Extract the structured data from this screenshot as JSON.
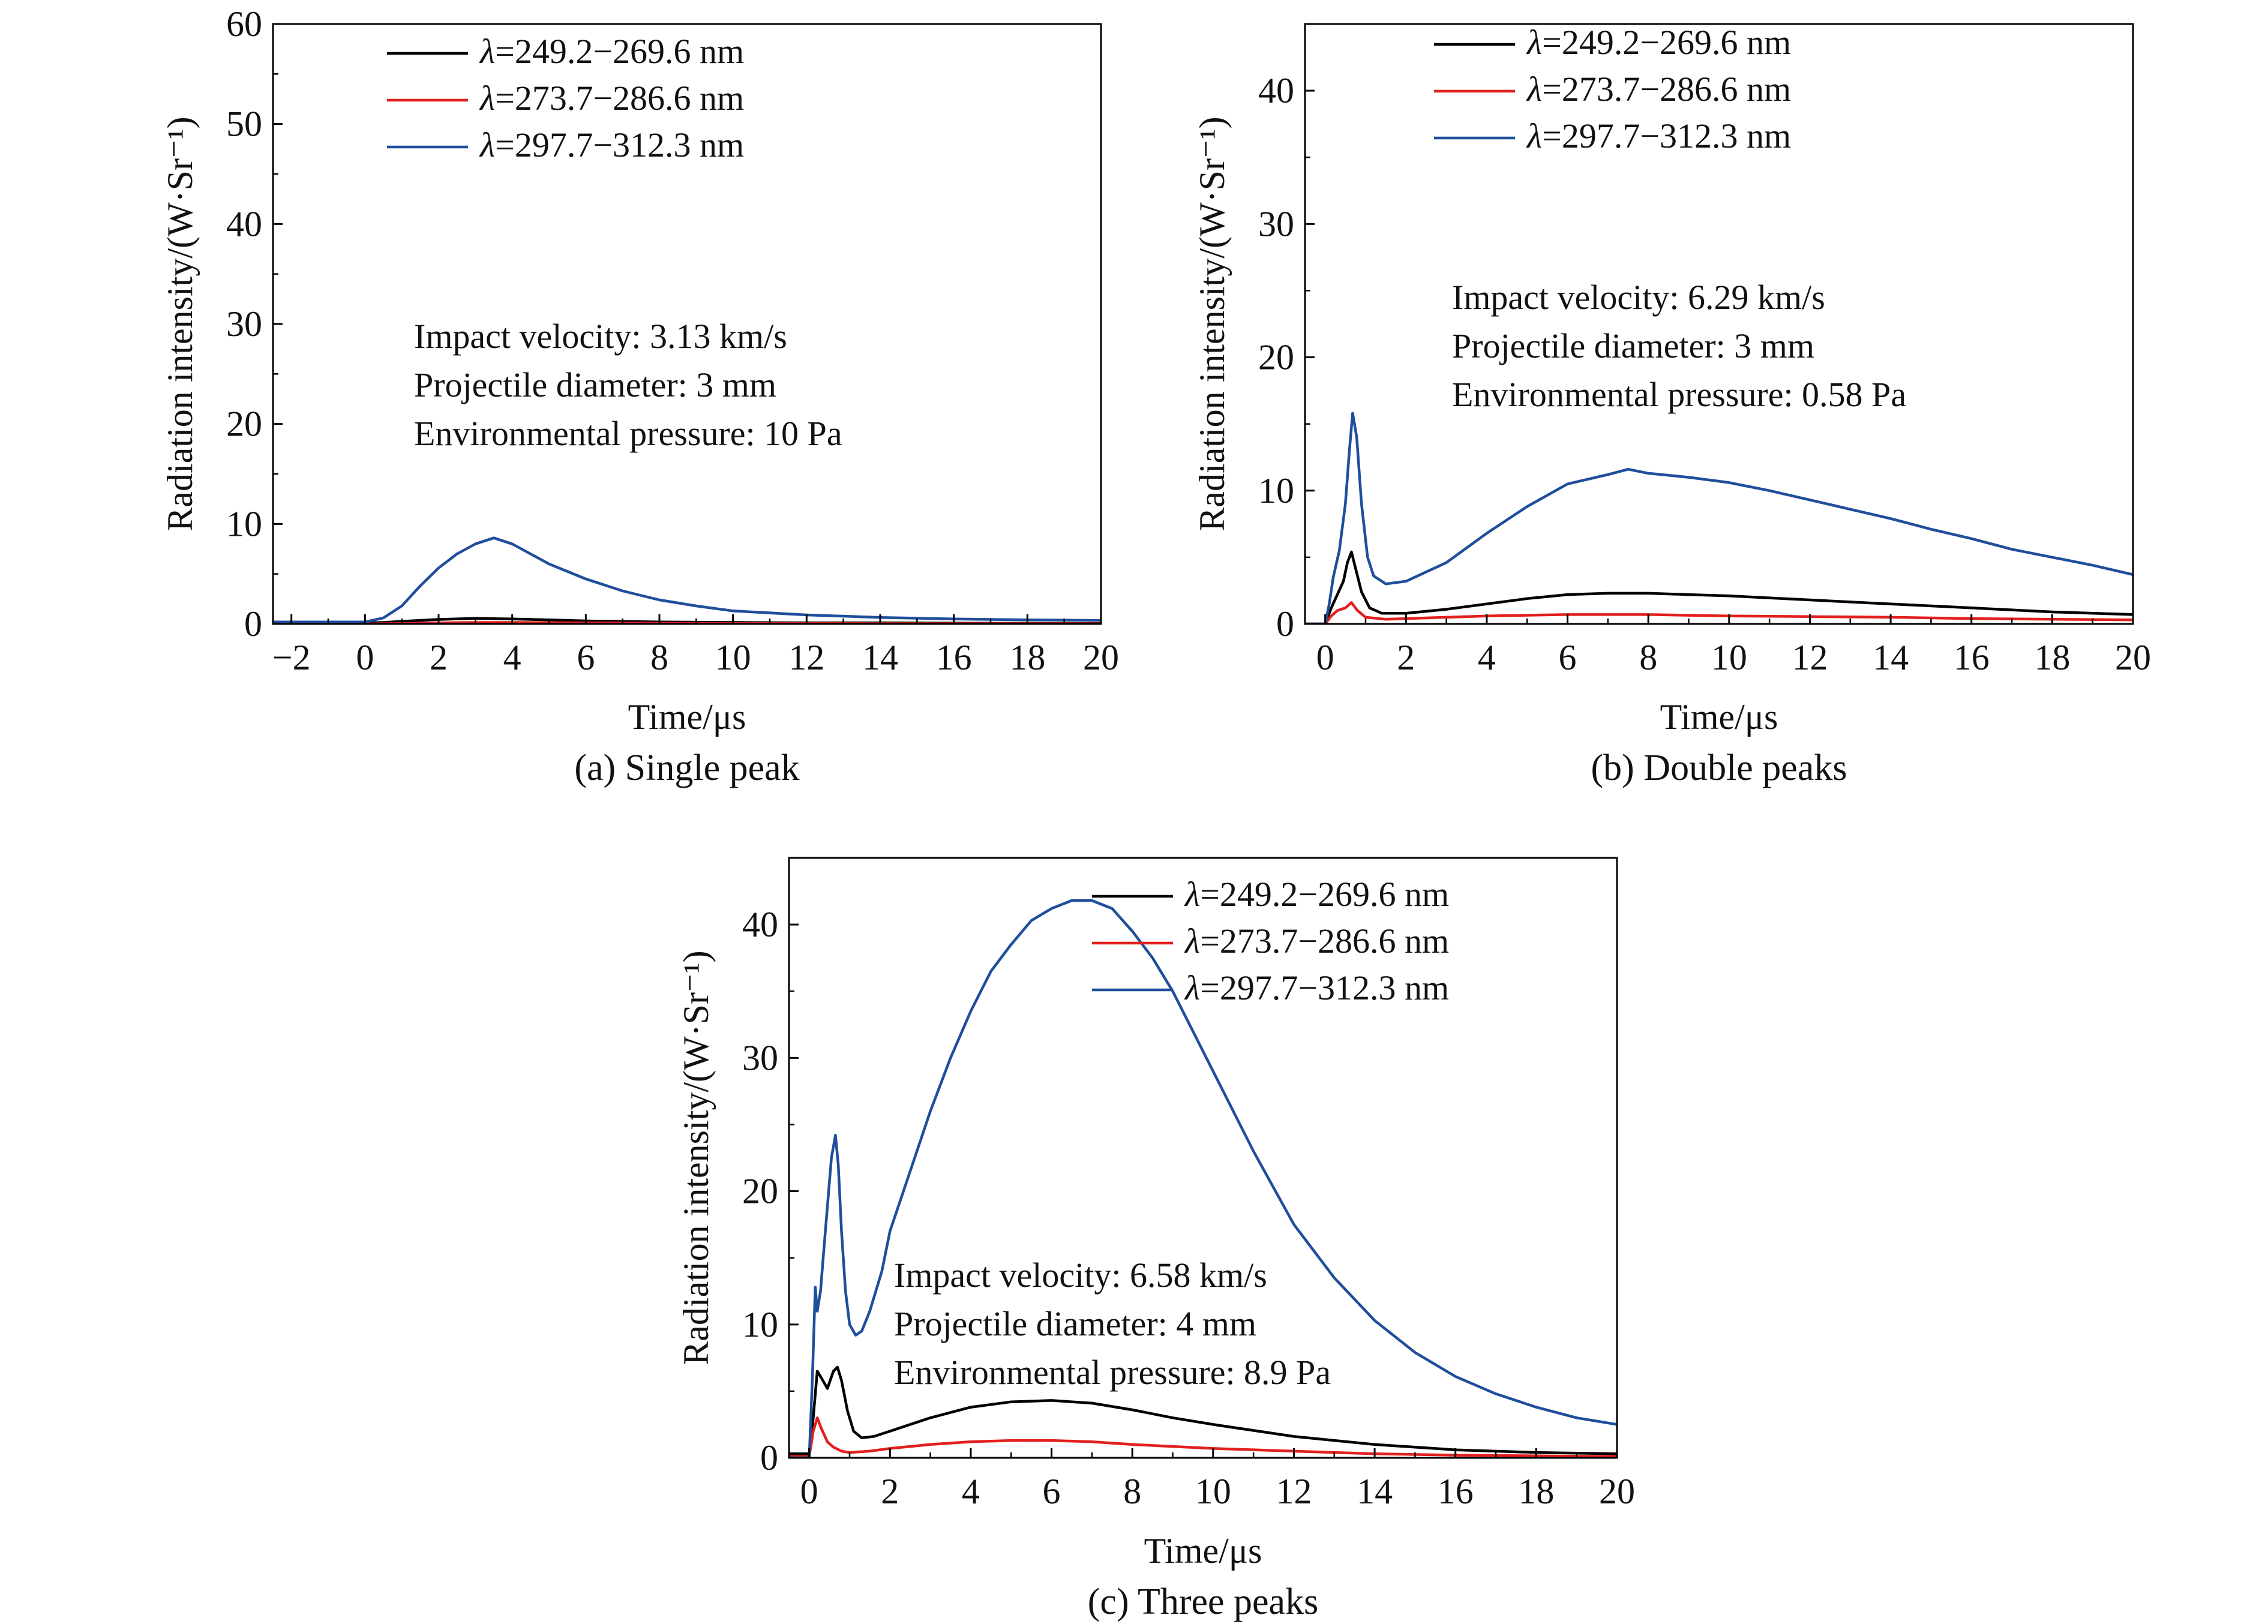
{
  "series_colors": {
    "black": "#000000",
    "red": "#e2201e",
    "blue": "#1f4e9c"
  },
  "chart_data": [
    {
      "type": "line",
      "panel": "a",
      "caption": "(a) Single peak",
      "xlabel": "Time/μs",
      "ylabel": "Radiation intensity/(W·Sr⁻¹)",
      "xlim": [
        -2.5,
        20
      ],
      "ylim": [
        0,
        60
      ],
      "xticks": [
        -2,
        0,
        2,
        4,
        6,
        8,
        10,
        12,
        14,
        16,
        18,
        20
      ],
      "xtick_labels": [
        "−2",
        "0",
        "2",
        "4",
        "6",
        "8",
        "10",
        "12",
        "14",
        "16",
        "18",
        "20"
      ],
      "yticks": [
        0,
        10,
        20,
        30,
        40,
        50,
        60
      ],
      "legend_placement": "top-center",
      "annotations": [
        "Impact velocity: 3.13 km/s",
        "Projectile diameter: 3 mm",
        "Environmental pressure: 10 Pa"
      ],
      "series": [
        {
          "name": "λ=249.2−269.6 nm",
          "lambda_symbol": "λ",
          "name_rest": "=249.2−269.6 nm",
          "color": "#000000",
          "x": [
            -2.5,
            0,
            0.5,
            1,
            2,
            3,
            4,
            5,
            6,
            8,
            10,
            12,
            14,
            16,
            18,
            20
          ],
          "y": [
            0.1,
            0.1,
            0.15,
            0.25,
            0.45,
            0.55,
            0.5,
            0.4,
            0.3,
            0.2,
            0.15,
            0.1,
            0.1,
            0.08,
            0.06,
            0.05
          ]
        },
        {
          "name": "λ=273.7−286.6 nm",
          "lambda_symbol": "λ",
          "name_rest": "=273.7−286.6 nm",
          "color": "#e2201e",
          "x": [
            -2.5,
            0,
            1,
            2,
            3,
            4,
            6,
            8,
            10,
            14,
            20
          ],
          "y": [
            0,
            0,
            0.05,
            0.1,
            0.15,
            0.15,
            0.1,
            0.08,
            0.05,
            0.03,
            0.02
          ]
        },
        {
          "name": "λ=297.7−312.3 nm",
          "lambda_symbol": "λ",
          "name_rest": "=297.7−312.3 nm",
          "color": "#1f4e9c",
          "x": [
            -2.5,
            0,
            0.5,
            1,
            1.5,
            2,
            2.5,
            3,
            3.5,
            4,
            4.5,
            5,
            6,
            7,
            8,
            9,
            10,
            12,
            14,
            16,
            18,
            20
          ],
          "y": [
            0.2,
            0.2,
            0.6,
            1.8,
            3.8,
            5.6,
            7.0,
            8.0,
            8.6,
            8.0,
            7.0,
            6.0,
            4.5,
            3.3,
            2.4,
            1.8,
            1.3,
            0.9,
            0.65,
            0.5,
            0.4,
            0.35
          ]
        }
      ]
    },
    {
      "type": "line",
      "panel": "b",
      "caption": "(b) Double peaks",
      "xlabel": "Time/μs",
      "ylabel": "Radiation intensity/(W·Sr⁻¹)",
      "xlim": [
        -0.5,
        20
      ],
      "ylim": [
        0,
        45
      ],
      "xticks": [
        0,
        2,
        4,
        6,
        8,
        10,
        12,
        14,
        16,
        18,
        20
      ],
      "xtick_labels": [
        "0",
        "2",
        "4",
        "6",
        "8",
        "10",
        "12",
        "14",
        "16",
        "18",
        "20"
      ],
      "yticks": [
        0,
        10,
        20,
        30,
        40
      ],
      "legend_placement": "top-center",
      "annotations": [
        "Impact velocity: 6.29 km/s",
        "Projectile diameter: 3 mm",
        "Environmental pressure: 0.58 Pa"
      ],
      "series": [
        {
          "name": "λ=249.2−269.6 nm",
          "lambda_symbol": "λ",
          "name_rest": "=249.2−269.6 nm",
          "color": "#000000",
          "x": [
            -0.5,
            0,
            0.15,
            0.3,
            0.45,
            0.55,
            0.65,
            0.75,
            0.9,
            1.1,
            1.4,
            2,
            3,
            4,
            5,
            6,
            7,
            8,
            9,
            10,
            12,
            14,
            16,
            18,
            20
          ],
          "y": [
            0,
            0,
            1.2,
            2.2,
            3.2,
            4.6,
            5.4,
            4.2,
            2.4,
            1.2,
            0.8,
            0.8,
            1.1,
            1.5,
            1.9,
            2.2,
            2.3,
            2.3,
            2.2,
            2.1,
            1.8,
            1.5,
            1.2,
            0.9,
            0.7
          ]
        },
        {
          "name": "λ=273.7−286.6 nm",
          "lambda_symbol": "λ",
          "name_rest": "=273.7−286.6 nm",
          "color": "#e2201e",
          "x": [
            -0.5,
            0,
            0.15,
            0.3,
            0.5,
            0.65,
            0.8,
            1.0,
            1.5,
            2,
            3,
            4,
            6,
            8,
            10,
            12,
            14,
            16,
            18,
            20
          ],
          "y": [
            0,
            0,
            0.6,
            1.0,
            1.2,
            1.6,
            1.0,
            0.5,
            0.35,
            0.4,
            0.5,
            0.6,
            0.7,
            0.7,
            0.6,
            0.55,
            0.5,
            0.4,
            0.35,
            0.3
          ]
        },
        {
          "name": "λ=297.7−312.3 nm",
          "lambda_symbol": "λ",
          "name_rest": "=297.7−312.3 nm",
          "color": "#1f4e9c",
          "x": [
            -0.5,
            0,
            0.1,
            0.2,
            0.35,
            0.5,
            0.6,
            0.68,
            0.78,
            0.9,
            1.05,
            1.2,
            1.5,
            2,
            3,
            4,
            5,
            6,
            7,
            7.5,
            8,
            9,
            10,
            11,
            12,
            13,
            14,
            15,
            16,
            17,
            18,
            19,
            20
          ],
          "y": [
            0,
            0,
            1.5,
            3.5,
            5.5,
            9.0,
            13.0,
            15.8,
            14.0,
            9.0,
            5.0,
            3.6,
            3.0,
            3.2,
            4.6,
            6.8,
            8.8,
            10.5,
            11.2,
            11.6,
            11.3,
            11.0,
            10.6,
            10.0,
            9.3,
            8.6,
            7.9,
            7.1,
            6.4,
            5.6,
            5.0,
            4.4,
            3.7
          ]
        }
      ]
    },
    {
      "type": "line",
      "panel": "c",
      "caption": "(c) Three peaks",
      "xlabel": "Time/μs",
      "ylabel": "Radiation intensity/(W·Sr⁻¹)",
      "xlim": [
        -0.5,
        20
      ],
      "ylim": [
        0,
        45
      ],
      "xticks": [
        0,
        2,
        4,
        6,
        8,
        10,
        12,
        14,
        16,
        18,
        20
      ],
      "xtick_labels": [
        "0",
        "2",
        "4",
        "6",
        "8",
        "10",
        "12",
        "14",
        "16",
        "18",
        "20"
      ],
      "yticks": [
        0,
        10,
        20,
        30,
        40
      ],
      "legend_placement": "top-right",
      "annotations": [
        "Impact velocity: 6.58 km/s",
        "Projectile diameter: 4 mm",
        "Environmental pressure: 8.9 Pa"
      ],
      "series": [
        {
          "name": "λ=249.2−269.6 nm",
          "lambda_symbol": "λ",
          "name_rest": "=249.2−269.6 nm",
          "color": "#000000",
          "x": [
            -0.5,
            0,
            0.1,
            0.2,
            0.3,
            0.45,
            0.6,
            0.7,
            0.8,
            0.95,
            1.1,
            1.3,
            1.6,
            2,
            3,
            4,
            5,
            6,
            7,
            8,
            9,
            10,
            12,
            14,
            16,
            18,
            20
          ],
          "y": [
            0.3,
            0.3,
            3.0,
            6.5,
            6.0,
            5.2,
            6.5,
            6.8,
            5.8,
            3.5,
            2.0,
            1.5,
            1.6,
            2.0,
            3.0,
            3.8,
            4.2,
            4.3,
            4.1,
            3.6,
            3.0,
            2.5,
            1.6,
            1.0,
            0.6,
            0.4,
            0.3
          ]
        },
        {
          "name": "λ=273.7−286.6 nm",
          "lambda_symbol": "λ",
          "name_rest": "=273.7−286.6 nm",
          "color": "#e2201e",
          "x": [
            -0.5,
            0,
            0.1,
            0.2,
            0.3,
            0.45,
            0.6,
            0.8,
            1.0,
            1.5,
            2,
            3,
            4,
            5,
            6,
            7,
            8,
            10,
            12,
            14,
            16,
            18,
            20
          ],
          "y": [
            0.1,
            0.1,
            2.0,
            3.0,
            2.2,
            1.2,
            0.8,
            0.5,
            0.4,
            0.5,
            0.7,
            1.0,
            1.2,
            1.3,
            1.3,
            1.2,
            1.0,
            0.7,
            0.5,
            0.3,
            0.2,
            0.15,
            0.1
          ]
        },
        {
          "name": "λ=297.7−312.3 nm",
          "lambda_symbol": "λ",
          "name_rest": "=297.7−312.3 nm",
          "color": "#1f4e9c",
          "x": [
            -0.5,
            0,
            0.08,
            0.15,
            0.2,
            0.28,
            0.4,
            0.55,
            0.65,
            0.72,
            0.8,
            0.9,
            1.0,
            1.15,
            1.3,
            1.5,
            1.8,
            2,
            2.5,
            3,
            3.5,
            4,
            4.5,
            5,
            5.5,
            6,
            6.5,
            7,
            7.5,
            8,
            8.5,
            9,
            9.5,
            10,
            11,
            12,
            13,
            14,
            15,
            16,
            17,
            18,
            19,
            20
          ],
          "y": [
            0,
            0,
            6.0,
            12.8,
            11.0,
            12.5,
            17.0,
            22.5,
            24.2,
            22.0,
            17.0,
            12.5,
            10.0,
            9.2,
            9.5,
            11.0,
            14.0,
            17.0,
            21.5,
            26.0,
            30.0,
            33.5,
            36.5,
            38.5,
            40.3,
            41.2,
            41.8,
            41.8,
            41.2,
            39.5,
            37.5,
            35.0,
            32.0,
            29.0,
            23.0,
            17.5,
            13.5,
            10.3,
            7.9,
            6.1,
            4.8,
            3.8,
            3.0,
            2.5
          ]
        }
      ]
    }
  ]
}
